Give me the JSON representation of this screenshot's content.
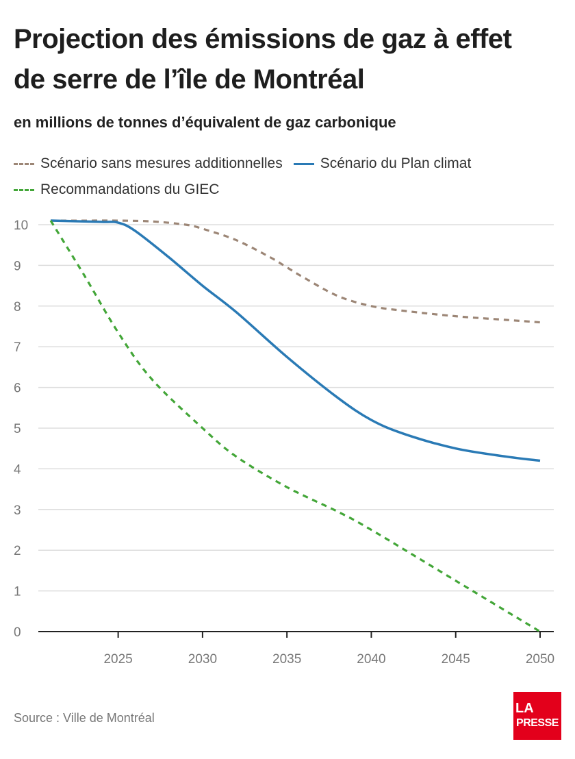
{
  "header": {
    "title": "Projection des émissions de gaz à effet de serre de l’île de Montréal",
    "subtitle": "en millions de tonnes d’équivalent de gaz carbonique"
  },
  "footer": {
    "source": "Source : Ville de Montréal",
    "logo_line1": "LA",
    "logo_line2": "PRESSE"
  },
  "colors": {
    "brown": "#9c8676",
    "blue": "#2a7ab5",
    "green": "#43a638",
    "grid": "#dddddd",
    "axis": "#222222",
    "logo": "#e3001b"
  },
  "chart_data": {
    "type": "line",
    "title": "Projection des émissions de gaz à effet de serre de l’île de Montréal",
    "subtitle": "en millions de tonnes d’équivalent de gaz carbonique",
    "xlabel": "",
    "ylabel": "",
    "xlim": [
      2021,
      2050.8
    ],
    "ylim": [
      0,
      10
    ],
    "xticks": [
      2025,
      2030,
      2035,
      2040,
      2045,
      2050
    ],
    "yticks": [
      0,
      1,
      2,
      3,
      4,
      5,
      6,
      7,
      8,
      9,
      10
    ],
    "grid": true,
    "legend_position": "top",
    "series": [
      {
        "name": "Scénario sans mesures additionnelles",
        "style": "dashed",
        "color": "#9c8676",
        "x": [
          2021,
          2023,
          2025,
          2027,
          2029,
          2030,
          2032,
          2034,
          2035,
          2036,
          2038,
          2040,
          2042,
          2045,
          2048,
          2050
        ],
        "y": [
          10.1,
          10.1,
          10.1,
          10.08,
          10.0,
          9.9,
          9.62,
          9.2,
          8.95,
          8.7,
          8.25,
          8.0,
          7.88,
          7.75,
          7.66,
          7.6
        ]
      },
      {
        "name": "Scénario du Plan climat",
        "style": "solid",
        "color": "#2a7ab5",
        "x": [
          2021,
          2024,
          2025,
          2026,
          2028,
          2030,
          2032,
          2035,
          2038,
          2040,
          2042,
          2045,
          2048,
          2050
        ],
        "y": [
          10.1,
          10.07,
          10.05,
          9.85,
          9.2,
          8.5,
          7.85,
          6.75,
          5.75,
          5.2,
          4.85,
          4.5,
          4.3,
          4.2
        ]
      },
      {
        "name": "Recommandations du GIEC",
        "style": "dashed",
        "color": "#43a638",
        "x": [
          2021,
          2023,
          2025,
          2027,
          2030,
          2032,
          2035,
          2038,
          2040,
          2045,
          2050
        ],
        "y": [
          10.1,
          8.75,
          7.35,
          6.2,
          5.0,
          4.3,
          3.55,
          2.95,
          2.5,
          1.25,
          0.0
        ]
      }
    ]
  }
}
